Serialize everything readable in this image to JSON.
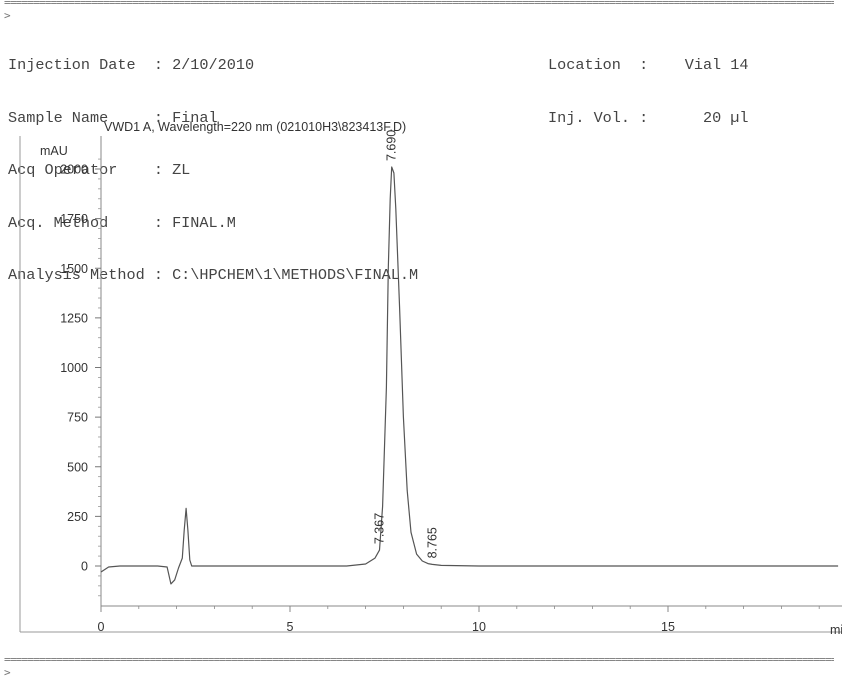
{
  "header": {
    "rule_top": "==================================================================================================================================================================->",
    "rule_bottom": "==================================================================================================================================================================->",
    "fields": [
      {
        "label": "Injection Date  ",
        "value": "2/10/2010"
      },
      {
        "label": "Sample Name     ",
        "value": "Final"
      },
      {
        "label": "Acq Operator    ",
        "value": "ZL"
      },
      {
        "label": "Acq. Method     ",
        "value": "FINAL.M"
      },
      {
        "label": "Analysis Method ",
        "value": "C:\\HPCHEM\\1\\METHODS\\FINAL.M"
      }
    ],
    "right_fields": [
      {
        "label": "Location  ",
        "value": "Vial 14"
      },
      {
        "label": "Inj. Vol. ",
        "value": "20 µl"
      }
    ]
  },
  "chart_data": {
    "type": "line",
    "title": "VWD1 A, Wavelength=220 nm (021010H3\\823413F.D)",
    "ylabel": "mAU",
    "xlabel": "mi",
    "xlim": [
      0,
      19.5
    ],
    "ylim": [
      -200,
      2100
    ],
    "x_ticks": [
      0,
      5,
      10,
      15
    ],
    "y_ticks": [
      0,
      250,
      500,
      750,
      1000,
      1250,
      1500,
      1750,
      2000
    ],
    "grid": false,
    "series": [
      {
        "x": [
          0.0,
          0.2,
          0.5,
          1.0,
          1.5,
          1.75,
          1.85,
          1.95,
          2.05,
          2.15,
          2.2,
          2.25,
          2.3,
          2.35,
          2.4,
          2.5,
          3.0,
          5.0,
          6.5,
          7.0,
          7.25,
          7.367,
          7.45,
          7.55,
          7.6,
          7.65,
          7.69,
          7.75,
          7.8,
          7.9,
          8.0,
          8.1,
          8.2,
          8.35,
          8.5,
          8.65,
          8.765,
          9.0,
          10.0,
          12.0,
          15.0,
          19.5
        ],
        "y": [
          -30,
          -5,
          0,
          0,
          0,
          -5,
          -90,
          -70,
          -10,
          40,
          180,
          290,
          180,
          30,
          0,
          0,
          0,
          0,
          0,
          10,
          40,
          80,
          300,
          900,
          1500,
          1850,
          2010,
          1980,
          1800,
          1300,
          750,
          380,
          170,
          60,
          25,
          12,
          8,
          3,
          0,
          0,
          0,
          0
        ]
      }
    ],
    "peak_labels": [
      {
        "x": 7.69,
        "y": 2010,
        "label": "7.690"
      },
      {
        "x": 7.367,
        "y": 80,
        "label": "7.367"
      },
      {
        "x": 8.765,
        "y": 8,
        "label": "8.765"
      }
    ]
  }
}
